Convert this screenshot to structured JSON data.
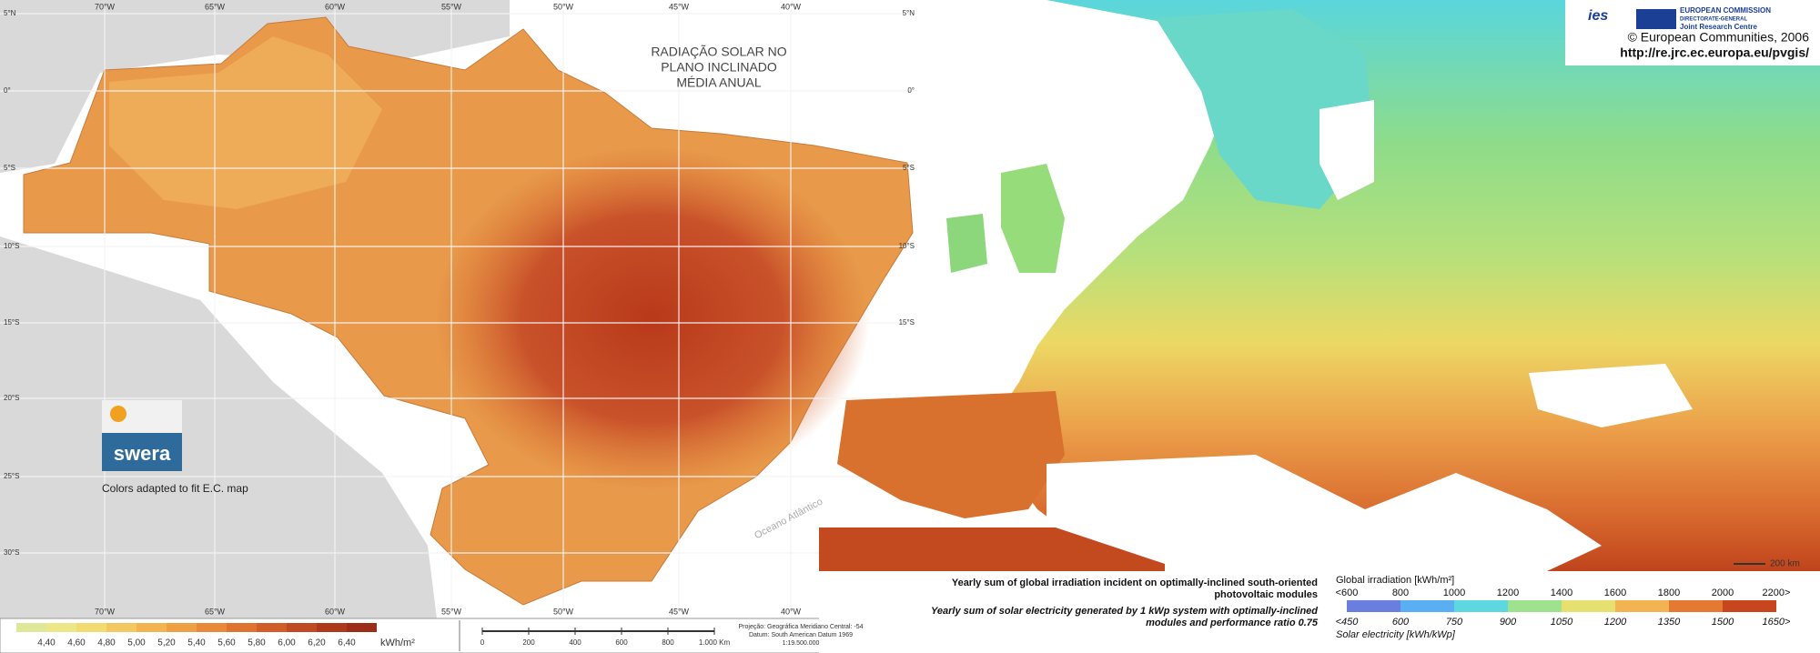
{
  "brazil_map": {
    "title_lines": [
      "RADIAÇÃO SOLAR NO",
      "PLANO INCLINADO",
      "MÉDIA ANUAL"
    ],
    "longitude_labels": [
      "70°W",
      "65°W",
      "60°W",
      "55°W",
      "50°W",
      "45°W",
      "40°W"
    ],
    "latitude_labels_left": [
      "5°N",
      "0°",
      "5°S",
      "10°S",
      "15°S",
      "20°S",
      "25°S",
      "30°S"
    ],
    "latitude_labels_right": [
      "5°N",
      "0°",
      "5°S",
      "10°S",
      "15°S"
    ],
    "logo": "swera",
    "note": "Colors adapted to fit E.C. map",
    "ocean_label": "Oceano Atlântico",
    "legend": {
      "labels": [
        "4,40",
        "4,60",
        "4,80",
        "5,00",
        "5,20",
        "5,40",
        "5,60",
        "5,80",
        "6,00",
        "6,20",
        "6,40"
      ],
      "unit": "kWh/m²",
      "colors": [
        "#dfe89a",
        "#ece88a",
        "#f2dc72",
        "#f4c860",
        "#f2b450",
        "#eea044",
        "#e88a3a",
        "#de7430",
        "#d05e28",
        "#c04a22",
        "#ae3a1c",
        "#9c2e18"
      ]
    },
    "scale_bar": {
      "labels": [
        "0",
        "200",
        "400",
        "600",
        "800",
        "1.000 Km"
      ]
    },
    "projection": [
      "Projeção: Geográfica    Meridiano Central: -54",
      "Datum: South American Datum 1969",
      "1:19.500.000"
    ]
  },
  "europe_map": {
    "logo": {
      "ies": "ies",
      "org_lines": [
        "EUROPEAN COMMISSION",
        "DIRECTORATE-GENERAL",
        "Joint Research Centre"
      ]
    },
    "copyright": "© European Communities, 2006",
    "url": "http://re.jrc.ec.europa.eu/pvgis/",
    "scale_label": "200 km",
    "legend": {
      "irradiation_title_lines": [
        "Yearly sum of global irradiation incident on optimally-inclined south-oriented",
        "photovoltaic modules"
      ],
      "electricity_title_lines": [
        "Yearly sum of solar electricity generated by 1 kWp system with optimally-inclined",
        "modules and performance ratio 0.75"
      ],
      "irradiation_unit": "Global irradiation [kWh/m²]",
      "irradiation_labels": [
        "<600",
        "800",
        "1000",
        "1200",
        "1400",
        "1600",
        "1800",
        "2000",
        "2200>"
      ],
      "electricity_labels": [
        "<450",
        "600",
        "750",
        "900",
        "1050",
        "1200",
        "1350",
        "1500",
        "1650>"
      ],
      "electricity_unit": "Solar electricity [kWh/kWp]",
      "colors": [
        "#6a7ee0",
        "#5aaef2",
        "#5ed8e0",
        "#9ee28e",
        "#e6e070",
        "#f2b452",
        "#e47a32",
        "#c8461e"
      ]
    }
  }
}
